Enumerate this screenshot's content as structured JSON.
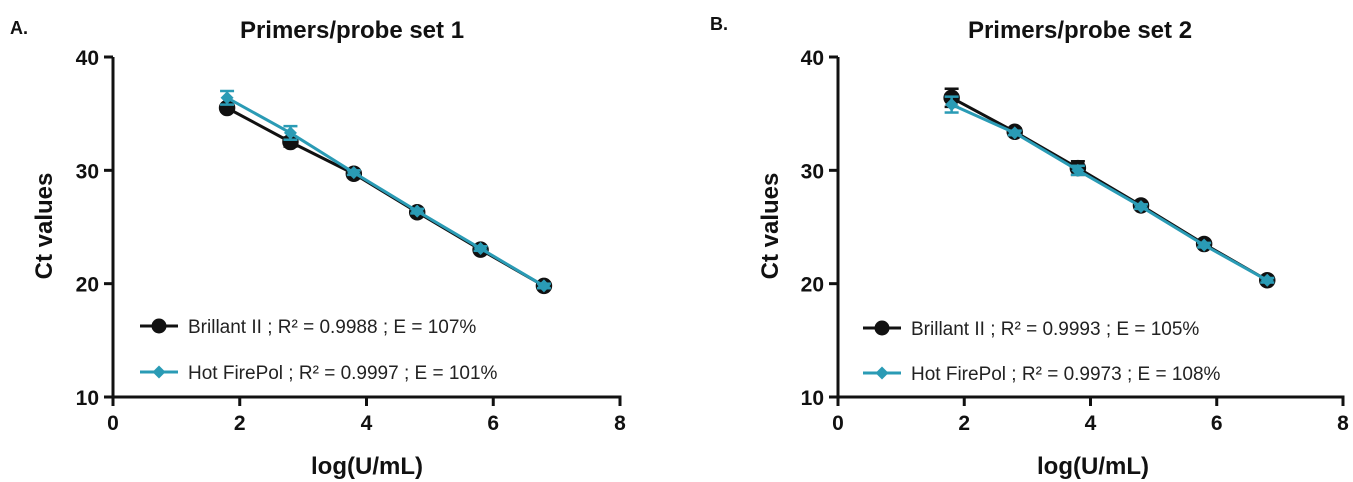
{
  "chart_data": [
    {
      "type": "line",
      "panel_label": "A.",
      "title": "Primers/probe set 1",
      "xlabel": "log(U/mL)",
      "ylabel": "Ct values",
      "xlim": [
        0,
        8
      ],
      "ylim": [
        10,
        40
      ],
      "xticks": [
        "0",
        "2",
        "4",
        "6",
        "8"
      ],
      "yticks": [
        "10",
        "20",
        "30",
        "40"
      ],
      "legend_position": "bottom-left",
      "series": [
        {
          "name": "Brillant II ; R² = 0.9988 ; E = 107%",
          "color": "#111111",
          "marker": "circle",
          "x": [
            1.8,
            2.8,
            3.8,
            4.8,
            5.8,
            6.8
          ],
          "y": [
            35.5,
            32.5,
            29.7,
            26.3,
            23.0,
            19.8
          ],
          "err": [
            0.3,
            0.4,
            0.3,
            0.2,
            0.2,
            0.2
          ]
        },
        {
          "name": "Hot FirePol ; R² = 0.9997 ; E = 101%",
          "color": "#2a9bb5",
          "marker": "diamond",
          "x": [
            1.8,
            2.8,
            3.8,
            4.8,
            5.8,
            6.8
          ],
          "y": [
            36.4,
            33.3,
            29.8,
            26.4,
            23.1,
            19.8
          ],
          "err": [
            0.6,
            0.6,
            0.2,
            0.2,
            0.2,
            0.2
          ]
        }
      ]
    },
    {
      "type": "line",
      "panel_label": "B.",
      "title": "Primers/probe set 2",
      "xlabel": "log(U/mL)",
      "ylabel": "Ct values",
      "xlim": [
        0,
        8
      ],
      "ylim": [
        10,
        40
      ],
      "xticks": [
        "0",
        "2",
        "4",
        "6",
        "8"
      ],
      "yticks": [
        "10",
        "20",
        "30",
        "40"
      ],
      "legend_position": "bottom-left",
      "series": [
        {
          "name": "Brillant II ; R² = 0.9993 ; E = 105%",
          "color": "#111111",
          "marker": "circle",
          "x": [
            1.8,
            2.8,
            3.8,
            4.8,
            5.8,
            6.8
          ],
          "y": [
            36.4,
            33.4,
            30.2,
            26.9,
            23.5,
            20.3
          ],
          "err": [
            0.8,
            0.3,
            0.6,
            0.2,
            0.2,
            0.2
          ]
        },
        {
          "name": "Hot FirePol ; R² = 0.9973 ; E = 108%",
          "color": "#2a9bb5",
          "marker": "diamond",
          "x": [
            1.8,
            2.8,
            3.8,
            4.8,
            5.8,
            6.8
          ],
          "y": [
            35.8,
            33.3,
            30.0,
            26.8,
            23.4,
            20.3
          ],
          "err": [
            0.7,
            0.2,
            0.4,
            0.2,
            0.2,
            0.2
          ]
        }
      ]
    }
  ]
}
